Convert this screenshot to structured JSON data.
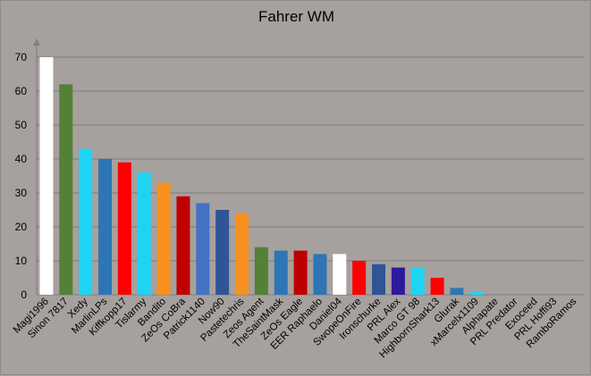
{
  "chart_data": {
    "type": "bar",
    "title": "Fahrer WM",
    "xlabel": "",
    "ylabel": "",
    "ylim": [
      0,
      70
    ],
    "yticks": [
      0,
      10,
      20,
      30,
      40,
      50,
      60,
      70
    ],
    "grid": true,
    "legend": "none",
    "categories": [
      "Magi1996",
      "Sinon 7817",
      "Xedy",
      "MarlinLPs",
      "Kiffkopp17",
      "Tislarmy",
      "Bandito",
      "ZeOs CoBra",
      "Patrick1140",
      "Now90",
      "Pastetechris",
      "Zeos Agent",
      "TheSaintMask",
      "ZeOs Eagle",
      "EER Raphaelo",
      "Daniel04",
      "SwopeOnFire",
      "Ironschurke",
      "PRL Alex",
      "Marco GT 98",
      "HighbornShark13",
      "Glurak",
      "xMarcelx1109",
      "Alphapate",
      "PRL Predator",
      "Exoceed",
      "PRL Hoffi93",
      "RamboRamos"
    ],
    "values": [
      70,
      62,
      43,
      40,
      39,
      36,
      33,
      29,
      27,
      25,
      24,
      14,
      13,
      13,
      12,
      12,
      10,
      9,
      8,
      8,
      5,
      2,
      1,
      0,
      0,
      0,
      0,
      0
    ],
    "colors": [
      "#ffffff",
      "#538135",
      "#1ed4f5",
      "#2e75b6",
      "#ff0000",
      "#1ed4f5",
      "#f7901e",
      "#c00000",
      "#4472c4",
      "#2f5597",
      "#f7901e",
      "#538135",
      "#2e75b6",
      "#c00000",
      "#2e75b6",
      "#ffffff",
      "#ff0000",
      "#2f5597",
      "#2c1a9c",
      "#1ed4f5",
      "#ff0000",
      "#2e75b6",
      "#1ed4f5",
      "#2e75b6",
      "#2e75b6",
      "#2e75b6",
      "#2e75b6",
      "#2e75b6"
    ]
  }
}
